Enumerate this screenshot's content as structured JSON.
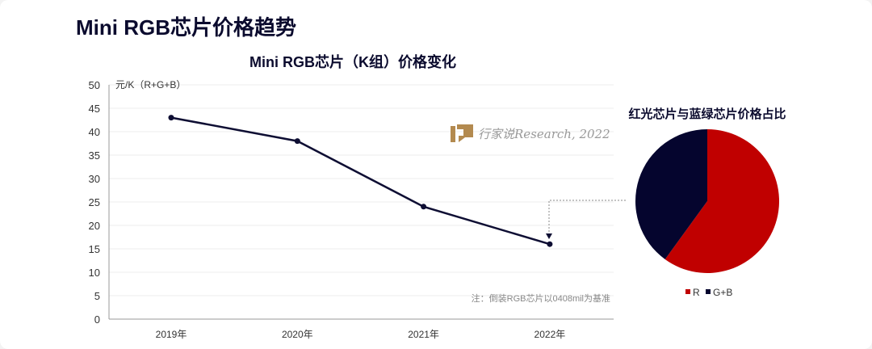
{
  "page_title": "Mini RGB芯片价格趋势",
  "watermark": "行家说Research, 2022",
  "chart_data": [
    {
      "type": "line",
      "title": "Mini RGB芯片（K组）价格变化",
      "ylabel": "元/K（R+G+B）",
      "xlabel": "",
      "categories": [
        "2019年",
        "2020年",
        "2021年",
        "2022年"
      ],
      "values": [
        43,
        38,
        24,
        16
      ],
      "ylim": [
        0,
        50
      ],
      "yticks": [
        0,
        5,
        10,
        15,
        20,
        25,
        30,
        35,
        40,
        45,
        50
      ],
      "grid": true,
      "note": "注：倒装RGB芯片以0408mil为基准",
      "line_color": "#0e0e33"
    },
    {
      "type": "pie",
      "title": "红光芯片与蓝绿芯片价格占比",
      "labels": [
        "R",
        "G+B"
      ],
      "values": [
        60,
        40
      ],
      "colors": [
        "#c00000",
        "#05052e"
      ],
      "legend": "bottom"
    }
  ]
}
